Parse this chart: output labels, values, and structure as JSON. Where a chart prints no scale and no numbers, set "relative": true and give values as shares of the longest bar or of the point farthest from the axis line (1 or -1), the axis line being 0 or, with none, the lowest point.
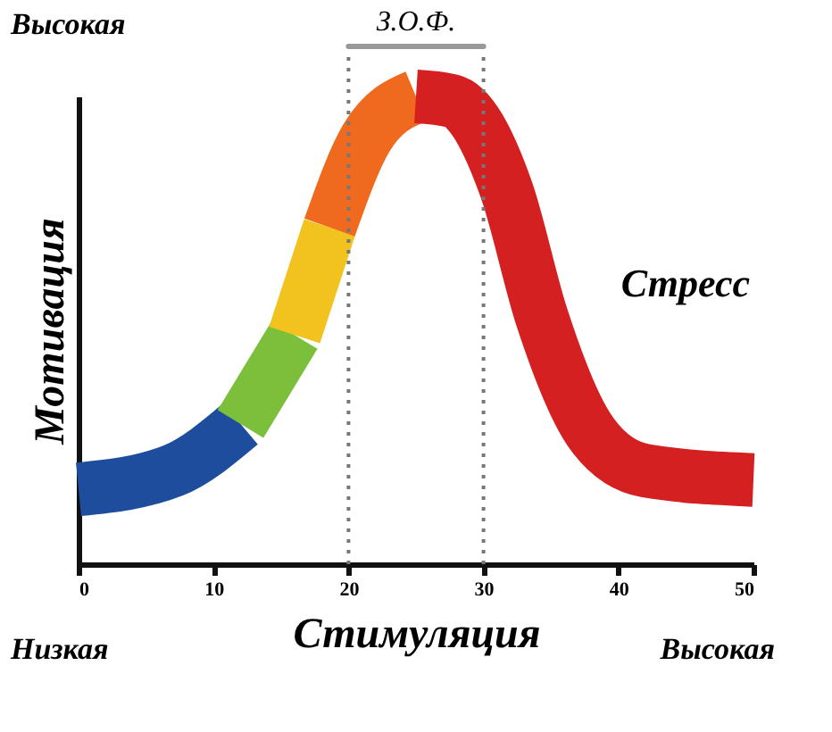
{
  "chart_data": {
    "type": "line",
    "relative": true,
    "xlabel": "Стимуляция",
    "ylabel": "Мотивация",
    "xlim": [
      0,
      50
    ],
    "xticks": [
      0,
      10,
      20,
      30,
      40,
      50
    ],
    "grid": false,
    "marker": "none",
    "line_style": "solid",
    "tick_labels": "x",
    "series": [
      {
        "color": "#1f4d9e",
        "x": [
          0,
          7,
          12
        ],
        "values": [
          0.16,
          0.2,
          0.3
        ]
      },
      {
        "color": "#7cbf3a",
        "x": [
          12,
          16
        ],
        "values": [
          0.3,
          0.49
        ]
      },
      {
        "color": "#f2c21f",
        "x": [
          16,
          18.6
        ],
        "values": [
          0.49,
          0.72
        ]
      },
      {
        "color": "#ef6a1e",
        "x": [
          18.6,
          21.3,
          25
        ],
        "values": [
          0.72,
          0.91,
          1.0
        ]
      },
      {
        "color": "#d42020",
        "x": [
          25,
          27.7,
          31.7,
          34.3,
          38,
          42,
          50
        ],
        "values": [
          1.0,
          0.99,
          0.8,
          0.53,
          0.28,
          0.2,
          0.18
        ]
      }
    ],
    "ref_lines": [
      {
        "axis": "x",
        "value": 20,
        "line_style": "dotted"
      },
      {
        "axis": "x",
        "value": 30,
        "line_style": "dotted"
      }
    ],
    "annotations": [
      "Высокая",
      "Низкая",
      "Высокая",
      "Стресс",
      "З.О.Ф."
    ]
  }
}
